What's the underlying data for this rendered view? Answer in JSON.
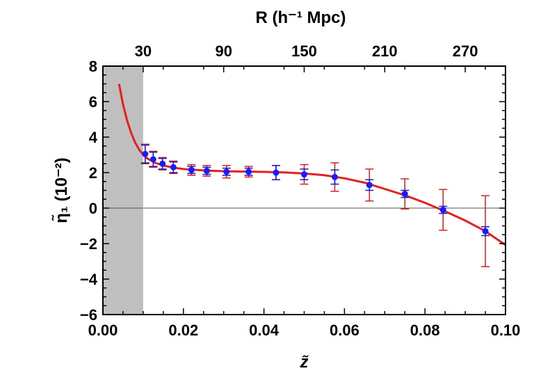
{
  "chart_data": {
    "type": "scatter",
    "xlabel": "z̃",
    "ylabel": "η̃₁ (10⁻²)",
    "top_xlabel": "R (h⁻¹ Mpc)",
    "xlim": [
      0.0,
      0.1
    ],
    "ylim": [
      -6,
      8
    ],
    "x_ticks": [
      0.0,
      0.02,
      0.04,
      0.06,
      0.08,
      0.1
    ],
    "x_tick_labels": [
      "0.00",
      "0.02",
      "0.04",
      "0.06",
      "0.08",
      "0.10"
    ],
    "y_ticks": [
      -6,
      -4,
      -2,
      0,
      2,
      4,
      6,
      8
    ],
    "y_tick_labels": [
      "−6",
      "−4",
      "−2",
      "0",
      "2",
      "4",
      "6",
      "8"
    ],
    "top_ticks": [
      {
        "label": "30",
        "z": 0.01
      },
      {
        "label": "90",
        "z": 0.03
      },
      {
        "label": "150",
        "z": 0.05
      },
      {
        "label": "210",
        "z": 0.07
      },
      {
        "label": "270",
        "z": 0.09
      }
    ],
    "shaded_region": {
      "x_from": 0.0,
      "x_to": 0.01,
      "color": "#bfbfbf"
    },
    "zero_line": true,
    "points": [
      {
        "x": 0.0105,
        "y": 3.05,
        "err_red": 0.55,
        "err_blue": 0.5
      },
      {
        "x": 0.0125,
        "y": 2.75,
        "err_red": 0.45,
        "err_blue": 0.4
      },
      {
        "x": 0.0148,
        "y": 2.5,
        "err_red": 0.35,
        "err_blue": 0.3
      },
      {
        "x": 0.0175,
        "y": 2.3,
        "err_red": 0.35,
        "err_blue": 0.3
      },
      {
        "x": 0.022,
        "y": 2.15,
        "err_red": 0.3,
        "err_blue": 0.2
      },
      {
        "x": 0.0258,
        "y": 2.1,
        "err_red": 0.3,
        "err_blue": 0.2
      },
      {
        "x": 0.0307,
        "y": 2.05,
        "err_red": 0.35,
        "err_blue": 0.2
      },
      {
        "x": 0.0362,
        "y": 2.05,
        "err_red": 0.3,
        "err_blue": 0.2
      },
      {
        "x": 0.043,
        "y": 2.0,
        "err_red": 0.4,
        "err_blue": 0.4
      },
      {
        "x": 0.05,
        "y": 1.9,
        "err_red": 0.55,
        "err_blue": 0.3
      },
      {
        "x": 0.0576,
        "y": 1.75,
        "err_red": 0.8,
        "err_blue": 0.4
      },
      {
        "x": 0.0662,
        "y": 1.3,
        "err_red": 0.9,
        "err_blue": 0.3
      },
      {
        "x": 0.075,
        "y": 0.8,
        "err_red": 0.85,
        "err_blue": 0.2
      },
      {
        "x": 0.0845,
        "y": -0.1,
        "err_red": 1.15,
        "err_blue": 0.2
      },
      {
        "x": 0.095,
        "y": -1.3,
        "err_red": 2.0,
        "err_blue": 0.25
      }
    ],
    "fit_curve": {
      "color": "#e61e1e",
      "points": [
        [
          0.004,
          7.0
        ],
        [
          0.005,
          5.85
        ],
        [
          0.006,
          4.95
        ],
        [
          0.007,
          4.25
        ],
        [
          0.008,
          3.7
        ],
        [
          0.009,
          3.3
        ],
        [
          0.01,
          3.0
        ],
        [
          0.011,
          2.8
        ],
        [
          0.013,
          2.55
        ],
        [
          0.015,
          2.4
        ],
        [
          0.0175,
          2.28
        ],
        [
          0.02,
          2.2
        ],
        [
          0.025,
          2.12
        ],
        [
          0.03,
          2.08
        ],
        [
          0.035,
          2.06
        ],
        [
          0.04,
          2.04
        ],
        [
          0.045,
          2.01
        ],
        [
          0.05,
          1.95
        ],
        [
          0.055,
          1.85
        ],
        [
          0.06,
          1.68
        ],
        [
          0.065,
          1.43
        ],
        [
          0.07,
          1.08
        ],
        [
          0.075,
          0.72
        ],
        [
          0.08,
          0.3
        ],
        [
          0.085,
          -0.18
        ],
        [
          0.09,
          -0.7
        ],
        [
          0.095,
          -1.3
        ],
        [
          0.1,
          -2.08
        ]
      ]
    },
    "colors": {
      "points": "#1a1aff",
      "err_red": "#d02020",
      "err_blue": "#1a1abf",
      "frame": "#000000",
      "shade": "#bfbfbf"
    }
  }
}
